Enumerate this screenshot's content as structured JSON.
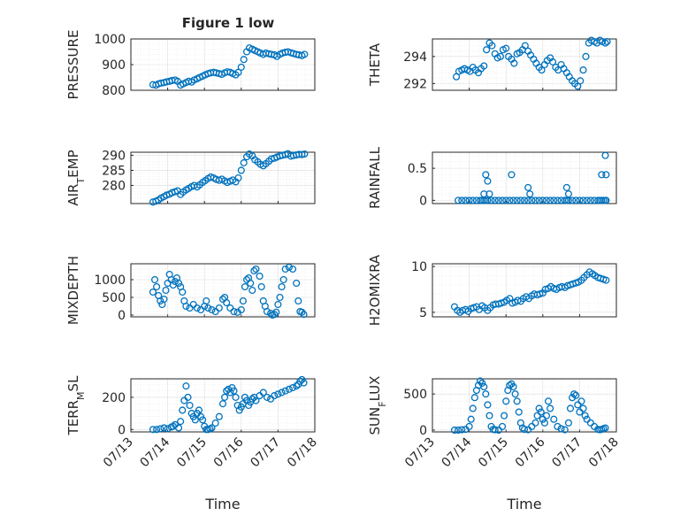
{
  "figure": {
    "title": "Figure 1 low",
    "marker_color": "#0072BD"
  },
  "chart_data": [
    {
      "type": "scatter",
      "ylabel": "PRESSURE",
      "ylim": [
        800,
        1000
      ],
      "yticks": [
        800,
        900,
        1000
      ],
      "xlim": [
        0,
        5
      ],
      "xticks": [
        0,
        1,
        2,
        3,
        4,
        5
      ],
      "xticklabels": [
        "07/13",
        "07/14",
        "07/15",
        "07/16",
        "07/17",
        "07/18"
      ],
      "minor_grid": true,
      "x": [
        0.6,
        0.68,
        0.75,
        0.82,
        0.9,
        0.97,
        1.05,
        1.12,
        1.2,
        1.27,
        1.35,
        1.42,
        1.5,
        1.57,
        1.65,
        1.72,
        1.8,
        1.87,
        1.95,
        2.02,
        2.1,
        2.17,
        2.25,
        2.32,
        2.4,
        2.47,
        2.55,
        2.62,
        2.7,
        2.77,
        2.85,
        2.92,
        3.0,
        3.07,
        3.15,
        3.22,
        3.3,
        3.37,
        3.45,
        3.52,
        3.6,
        3.67,
        3.75,
        3.82,
        3.9,
        3.97,
        4.05,
        4.12,
        4.2,
        4.27,
        4.35,
        4.42,
        4.5,
        4.57,
        4.65,
        4.72
      ],
      "y": [
        822,
        820,
        825,
        828,
        830,
        833,
        835,
        838,
        840,
        835,
        820,
        825,
        830,
        835,
        832,
        840,
        845,
        850,
        855,
        860,
        865,
        868,
        870,
        868,
        865,
        862,
        868,
        872,
        870,
        865,
        860,
        870,
        890,
        920,
        950,
        965,
        960,
        955,
        950,
        945,
        940,
        945,
        942,
        940,
        938,
        932,
        940,
        945,
        948,
        950,
        946,
        943,
        940,
        938,
        935,
        940
      ]
    },
    {
      "type": "scatter",
      "ylabel": "THETA",
      "ylim": [
        291.5,
        295.3
      ],
      "yticks": [
        292,
        294
      ],
      "xlim": [
        0,
        5
      ],
      "xticks": [
        0,
        1,
        2,
        3,
        4,
        5
      ],
      "xticklabels": [
        "07/13",
        "07/14",
        "07/15",
        "07/16",
        "07/17",
        "07/18"
      ],
      "minor_grid": true,
      "x": [
        0.65,
        0.72,
        0.8,
        0.87,
        0.95,
        1.02,
        1.1,
        1.17,
        1.25,
        1.32,
        1.4,
        1.47,
        1.55,
        1.62,
        1.7,
        1.77,
        1.85,
        1.92,
        2.0,
        2.07,
        2.15,
        2.22,
        2.3,
        2.37,
        2.45,
        2.52,
        2.6,
        2.67,
        2.75,
        2.82,
        2.9,
        2.97,
        3.05,
        3.12,
        3.2,
        3.27,
        3.35,
        3.42,
        3.5,
        3.57,
        3.65,
        3.72,
        3.8,
        3.87,
        3.95,
        4.02,
        4.1,
        4.17,
        4.25,
        4.32,
        4.4,
        4.47,
        4.55,
        4.62,
        4.7,
        4.75
      ],
      "y": [
        292.5,
        292.9,
        293.0,
        293.1,
        293.0,
        292.9,
        293.2,
        293.0,
        292.8,
        293.1,
        293.3,
        294.5,
        295.0,
        294.8,
        294.2,
        293.9,
        294.0,
        294.5,
        294.6,
        294.0,
        293.8,
        293.5,
        294.2,
        294.3,
        294.5,
        294.8,
        294.4,
        294.1,
        293.8,
        293.5,
        293.2,
        293.0,
        293.4,
        293.7,
        293.9,
        293.6,
        293.2,
        293.0,
        293.4,
        293.1,
        292.8,
        292.5,
        292.2,
        292.0,
        291.8,
        292.2,
        293.0,
        294.0,
        295.0,
        295.2,
        295.1,
        295.0,
        295.2,
        295.1,
        295.0,
        295.1
      ]
    },
    {
      "type": "scatter",
      "ylabel": "AIR",
      "ylabel_sub": "T",
      "ylabel_tail": "EMP",
      "ylim": [
        274,
        291
      ],
      "yticks": [
        280,
        285,
        290
      ],
      "xlim": [
        0,
        5
      ],
      "xticks": [
        0,
        1,
        2,
        3,
        4,
        5
      ],
      "xticklabels": [
        "07/13",
        "07/14",
        "07/15",
        "07/16",
        "07/17",
        "07/18"
      ],
      "minor_grid": true,
      "x": [
        0.6,
        0.68,
        0.75,
        0.82,
        0.9,
        0.97,
        1.05,
        1.12,
        1.2,
        1.27,
        1.35,
        1.42,
        1.5,
        1.57,
        1.65,
        1.72,
        1.8,
        1.87,
        1.95,
        2.02,
        2.1,
        2.17,
        2.25,
        2.32,
        2.4,
        2.47,
        2.55,
        2.62,
        2.7,
        2.77,
        2.85,
        2.92,
        3.0,
        3.07,
        3.15,
        3.22,
        3.3,
        3.37,
        3.45,
        3.52,
        3.6,
        3.67,
        3.75,
        3.82,
        3.9,
        3.97,
        4.05,
        4.12,
        4.2,
        4.27,
        4.35,
        4.42,
        4.5,
        4.57,
        4.65,
        4.72
      ],
      "y": [
        274.5,
        274.8,
        275.2,
        275.8,
        276.3,
        276.8,
        277.1,
        277.6,
        277.9,
        278.2,
        277.0,
        277.8,
        278.5,
        279.0,
        279.6,
        280.0,
        279.5,
        280.2,
        281.0,
        281.6,
        282.3,
        282.8,
        282.5,
        282.0,
        281.7,
        282.1,
        281.5,
        281.0,
        281.4,
        281.8,
        281.2,
        282.5,
        285.0,
        287.5,
        289.5,
        290.4,
        289.8,
        288.5,
        287.8,
        287.0,
        286.5,
        287.2,
        288.0,
        288.8,
        289.0,
        289.4,
        289.8,
        290.0,
        290.2,
        290.5,
        289.7,
        289.9,
        290.1,
        290.3,
        290.2,
        290.4
      ]
    },
    {
      "type": "scatter",
      "ylabel": "RAINFALL",
      "ylim": [
        -0.05,
        0.75
      ],
      "yticks": [
        0,
        0.5
      ],
      "ytick_labels": [
        "0",
        "0.5"
      ],
      "xlim": [
        0,
        5
      ],
      "xticks": [
        0,
        1,
        2,
        3,
        4,
        5
      ],
      "xticklabels": [
        "07/13",
        "07/14",
        "07/15",
        "07/16",
        "07/17",
        "07/18"
      ],
      "minor_grid": true,
      "x": [
        0.7,
        0.8,
        0.9,
        1.0,
        1.1,
        1.2,
        1.3,
        1.35,
        1.4,
        1.45,
        1.5,
        1.6,
        1.7,
        1.8,
        1.9,
        2.0,
        2.1,
        2.2,
        2.3,
        2.4,
        2.5,
        2.6,
        2.7,
        2.8,
        2.9,
        3.0,
        3.1,
        3.2,
        3.3,
        3.4,
        3.5,
        3.6,
        3.65,
        3.7,
        3.8,
        3.9,
        4.0,
        4.1,
        4.2,
        4.3,
        4.4,
        4.5,
        4.55,
        4.6,
        4.65,
        4.7,
        4.72,
        1.4,
        1.45,
        1.5,
        1.55,
        2.15,
        2.6,
        2.65,
        3.65,
        3.7,
        4.6,
        4.7,
        4.72
      ],
      "y": [
        0,
        0,
        0,
        0,
        0,
        0,
        0,
        0,
        0,
        0,
        0,
        0,
        0,
        0,
        0,
        0,
        0,
        0,
        0,
        0,
        0,
        0,
        0,
        0,
        0,
        0,
        0,
        0,
        0,
        0,
        0,
        0,
        0,
        0,
        0,
        0,
        0,
        0,
        0,
        0,
        0,
        0,
        0,
        0,
        0,
        0,
        0,
        0.1,
        0.4,
        0.3,
        0.1,
        0.4,
        0.2,
        0.1,
        0.2,
        0.1,
        0.4,
        0.7,
        0.4
      ]
    },
    {
      "type": "scatter",
      "ylabel": "MIXDEPTH",
      "ylim": [
        -50,
        1450
      ],
      "yticks": [
        0,
        500,
        1000
      ],
      "xlim": [
        0,
        5
      ],
      "xticks": [
        0,
        1,
        2,
        3,
        4,
        5
      ],
      "xticklabels": [
        "07/13",
        "07/14",
        "07/15",
        "07/16",
        "07/17",
        "07/18"
      ],
      "minor_grid": true,
      "x": [
        0.6,
        0.65,
        0.7,
        0.75,
        0.8,
        0.85,
        0.9,
        0.95,
        1.0,
        1.05,
        1.1,
        1.15,
        1.2,
        1.25,
        1.3,
        1.35,
        1.4,
        1.45,
        1.5,
        1.6,
        1.7,
        1.8,
        1.9,
        2.0,
        2.05,
        2.1,
        2.2,
        2.3,
        2.4,
        2.5,
        2.55,
        2.6,
        2.7,
        2.8,
        2.9,
        3.0,
        3.05,
        3.1,
        3.15,
        3.2,
        3.25,
        3.3,
        3.35,
        3.4,
        3.5,
        3.55,
        3.6,
        3.65,
        3.7,
        3.8,
        3.85,
        3.9,
        3.95,
        4.0,
        4.05,
        4.1,
        4.15,
        4.2,
        4.3,
        4.4,
        4.5,
        4.55,
        4.6,
        4.65,
        4.7
      ],
      "y": [
        650,
        1000,
        800,
        550,
        400,
        300,
        450,
        700,
        900,
        1150,
        1000,
        850,
        950,
        1050,
        900,
        800,
        650,
        400,
        250,
        200,
        300,
        200,
        150,
        250,
        400,
        200,
        150,
        100,
        200,
        450,
        500,
        350,
        200,
        100,
        80,
        150,
        400,
        800,
        1000,
        1050,
        900,
        700,
        1250,
        1300,
        1100,
        800,
        400,
        250,
        100,
        50,
        0,
        20,
        80,
        300,
        500,
        800,
        1000,
        1300,
        1350,
        1300,
        900,
        400,
        100,
        80,
        20
      ]
    },
    {
      "type": "scatter",
      "ylabel": "H2OMIXRA",
      "ylim": [
        4.5,
        10.3
      ],
      "yticks": [
        5,
        10
      ],
      "xlim": [
        0,
        5
      ],
      "xticks": [
        0,
        1,
        2,
        3,
        4,
        5
      ],
      "xticklabels": [
        "07/13",
        "07/14",
        "07/15",
        "07/16",
        "07/17",
        "07/18"
      ],
      "minor_grid": true,
      "x": [
        0.6,
        0.68,
        0.75,
        0.82,
        0.9,
        0.97,
        1.05,
        1.12,
        1.2,
        1.27,
        1.35,
        1.42,
        1.5,
        1.57,
        1.65,
        1.72,
        1.8,
        1.87,
        1.95,
        2.02,
        2.1,
        2.17,
        2.25,
        2.32,
        2.4,
        2.47,
        2.55,
        2.62,
        2.7,
        2.77,
        2.85,
        2.92,
        3.0,
        3.07,
        3.15,
        3.22,
        3.3,
        3.37,
        3.45,
        3.52,
        3.6,
        3.67,
        3.75,
        3.82,
        3.9,
        3.97,
        4.05,
        4.12,
        4.2,
        4.27,
        4.35,
        4.42,
        4.5,
        4.57,
        4.65,
        4.72
      ],
      "y": [
        5.6,
        5.2,
        5.0,
        5.2,
        5.3,
        5.1,
        5.4,
        5.5,
        5.6,
        5.3,
        5.7,
        5.5,
        5.2,
        5.5,
        5.8,
        5.9,
        5.9,
        6.0,
        6.1,
        6.3,
        6.5,
        6.0,
        6.1,
        6.3,
        6.2,
        6.5,
        6.7,
        6.5,
        6.8,
        7.0,
        6.9,
        7.0,
        7.1,
        7.5,
        7.6,
        7.8,
        7.6,
        7.5,
        7.7,
        7.8,
        7.7,
        7.9,
        8.0,
        8.1,
        8.2,
        8.3,
        8.5,
        8.8,
        9.1,
        9.4,
        9.2,
        9.0,
        8.8,
        8.7,
        8.6,
        8.5
      ]
    },
    {
      "type": "scatter",
      "ylabel": "TERR",
      "ylabel_sub": "M",
      "ylabel_tail": "SL",
      "xlabel": "Time",
      "ylim": [
        -15,
        315
      ],
      "yticks": [
        0,
        200
      ],
      "xlim": [
        0,
        5
      ],
      "xticks": [
        0,
        1,
        2,
        3,
        4,
        5
      ],
      "xticklabels": [
        "07/13",
        "07/14",
        "07/15",
        "07/16",
        "07/17",
        "07/18"
      ],
      "minor_grid": true,
      "x": [
        0.6,
        0.7,
        0.8,
        0.9,
        1.0,
        1.1,
        1.15,
        1.2,
        1.3,
        1.35,
        1.4,
        1.45,
        1.5,
        1.55,
        1.6,
        1.65,
        1.7,
        1.75,
        1.8,
        1.85,
        1.9,
        1.95,
        2.0,
        2.05,
        2.1,
        2.15,
        2.2,
        2.3,
        2.4,
        2.5,
        2.55,
        2.6,
        2.65,
        2.7,
        2.75,
        2.8,
        2.85,
        2.9,
        2.95,
        3.0,
        3.05,
        3.1,
        3.15,
        3.2,
        3.25,
        3.3,
        3.35,
        3.4,
        3.5,
        3.6,
        3.7,
        3.8,
        3.9,
        4.0,
        4.1,
        4.2,
        4.3,
        4.4,
        4.5,
        4.55,
        4.6,
        4.65,
        4.7
      ],
      "y": [
        0,
        0,
        5,
        10,
        5,
        15,
        20,
        30,
        10,
        50,
        120,
        180,
        270,
        200,
        150,
        100,
        80,
        60,
        100,
        120,
        80,
        60,
        20,
        0,
        0,
        5,
        10,
        40,
        80,
        160,
        200,
        240,
        250,
        230,
        260,
        240,
        200,
        150,
        120,
        140,
        160,
        200,
        180,
        150,
        170,
        190,
        200,
        180,
        210,
        230,
        200,
        190,
        210,
        220,
        230,
        240,
        250,
        260,
        270,
        280,
        300,
        310,
        290
      ]
    },
    {
      "type": "scatter",
      "ylabel": "SUN",
      "ylabel_sub": "F",
      "ylabel_tail": "LUX",
      "xlabel": "Time",
      "ylim": [
        -25,
        710
      ],
      "yticks": [
        0,
        500
      ],
      "xlim": [
        0,
        5
      ],
      "xticks": [
        0,
        1,
        2,
        3,
        4,
        5
      ],
      "xticklabels": [
        "07/13",
        "07/14",
        "07/15",
        "07/16",
        "07/17",
        "07/18"
      ],
      "minor_grid": true,
      "x": [
        0.6,
        0.7,
        0.8,
        0.9,
        1.0,
        1.05,
        1.1,
        1.15,
        1.2,
        1.25,
        1.3,
        1.35,
        1.4,
        1.45,
        1.5,
        1.55,
        1.6,
        1.65,
        1.7,
        1.8,
        1.9,
        1.95,
        2.0,
        2.05,
        2.1,
        2.15,
        2.2,
        2.25,
        2.3,
        2.35,
        2.4,
        2.45,
        2.5,
        2.6,
        2.7,
        2.8,
        2.85,
        2.9,
        2.95,
        3.0,
        3.05,
        3.1,
        3.15,
        3.2,
        3.3,
        3.4,
        3.5,
        3.6,
        3.7,
        3.75,
        3.8,
        3.85,
        3.9,
        3.95,
        4.0,
        4.05,
        4.1,
        4.15,
        4.2,
        4.3,
        4.4,
        4.5,
        4.55,
        4.6,
        4.65,
        4.7
      ],
      "y": [
        0,
        0,
        5,
        10,
        50,
        150,
        300,
        450,
        550,
        620,
        680,
        650,
        600,
        500,
        350,
        200,
        50,
        10,
        5,
        0,
        50,
        200,
        400,
        550,
        620,
        640,
        600,
        500,
        400,
        250,
        100,
        30,
        10,
        5,
        50,
        100,
        200,
        300,
        250,
        150,
        100,
        200,
        400,
        300,
        150,
        50,
        20,
        5,
        100,
        300,
        450,
        500,
        480,
        350,
        250,
        400,
        300,
        200,
        150,
        100,
        50,
        10,
        5,
        10,
        20,
        30
      ]
    }
  ]
}
